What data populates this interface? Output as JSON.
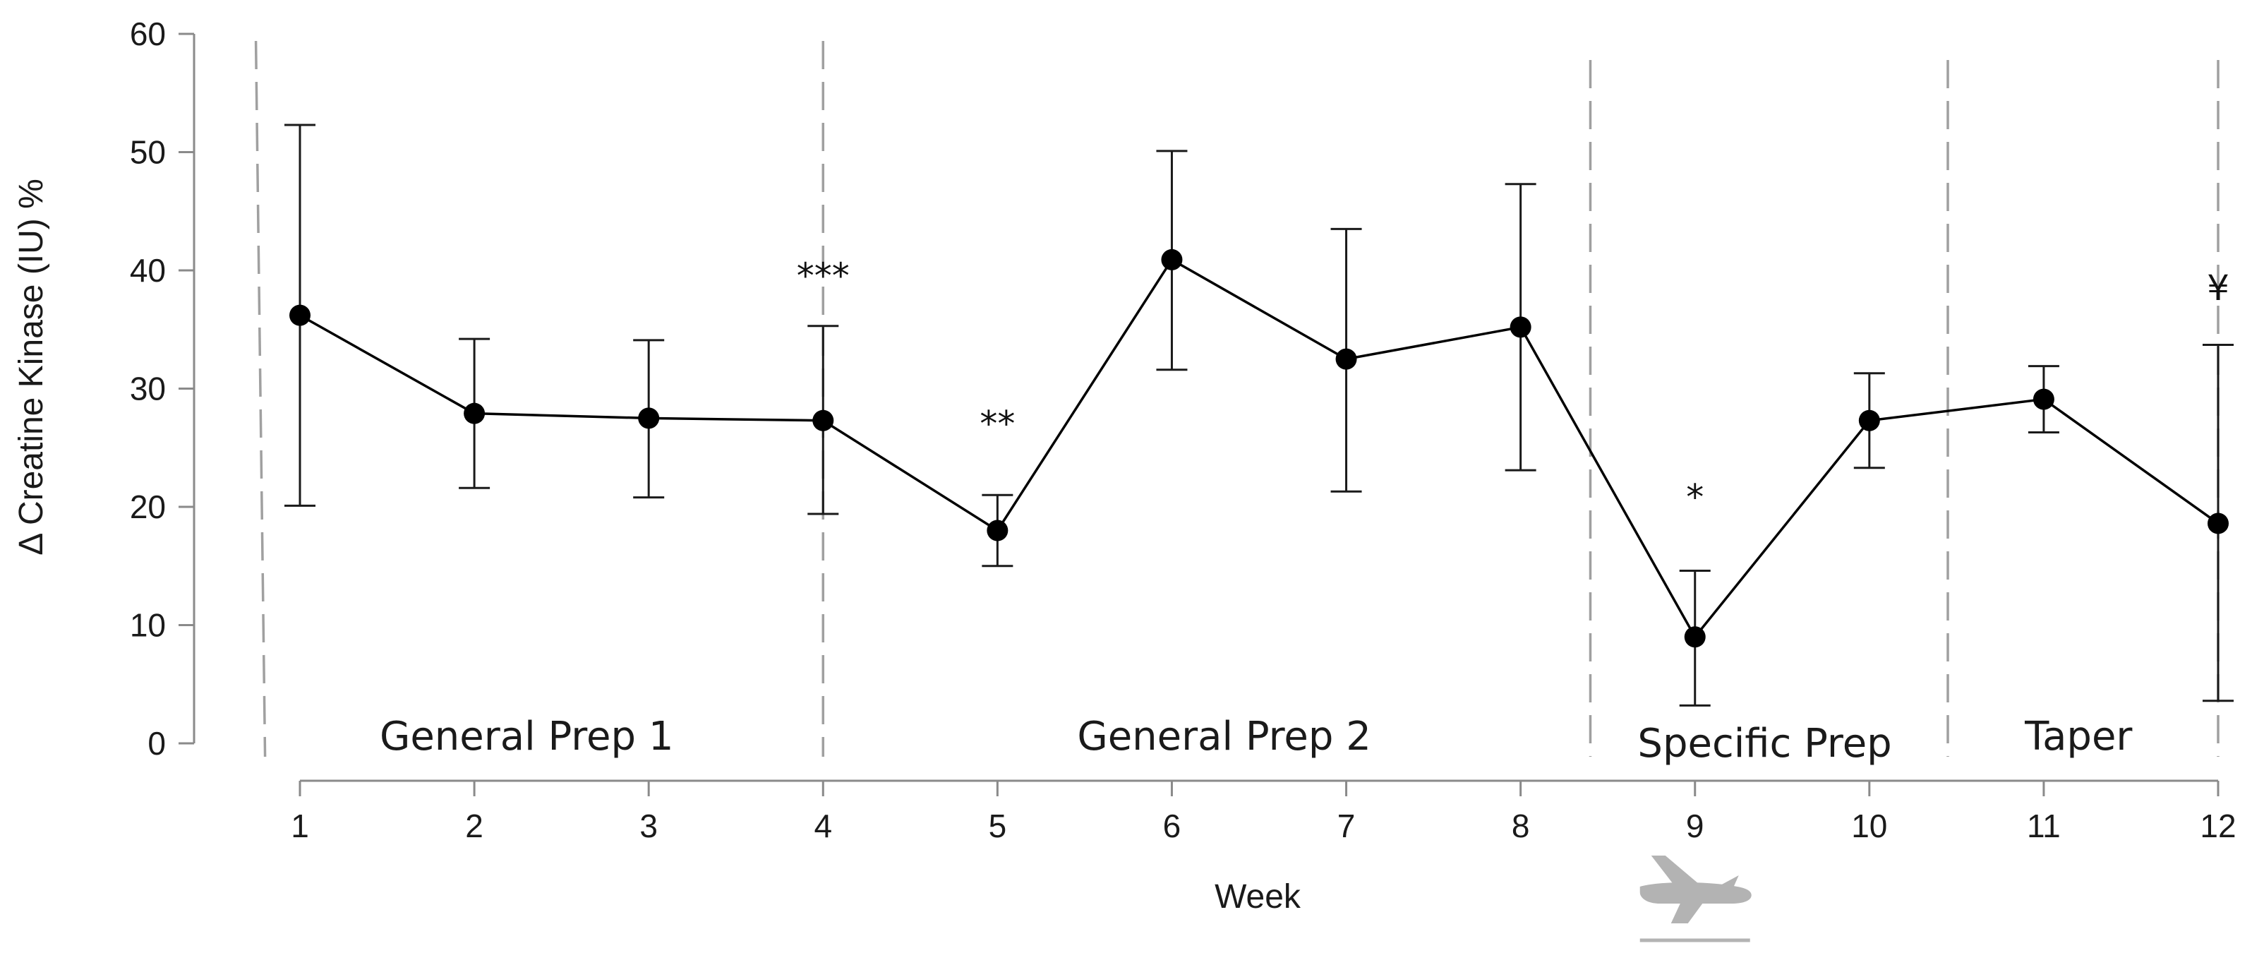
{
  "chart_data": {
    "type": "line",
    "title": "",
    "xlabel": "Week",
    "ylabel": "Δ Creatine Kinase (IU) %",
    "x": [
      1,
      2,
      3,
      4,
      5,
      6,
      7,
      8,
      9,
      10,
      11,
      12
    ],
    "x_tick_labels": [
      "1",
      "2",
      "3",
      "4",
      "5",
      "6",
      "7",
      "8",
      "9",
      "10",
      "11",
      "12"
    ],
    "ylim": [
      0,
      60
    ],
    "y_ticks": [
      0,
      10,
      20,
      30,
      40,
      50,
      60
    ],
    "y_tick_labels": [
      "0",
      "10",
      "20",
      "30",
      "40",
      "50",
      "60"
    ],
    "grid": false,
    "series": [
      {
        "name": "Δ Creatine Kinase",
        "values": [
          36.2,
          27.9,
          27.5,
          27.3,
          18.0,
          40.9,
          32.5,
          35.2,
          9.0,
          27.3,
          29.1,
          18.6
        ],
        "err_low": [
          20.1,
          21.6,
          20.8,
          19.4,
          15.0,
          31.6,
          21.3,
          23.1,
          3.2,
          23.3,
          26.3,
          3.6
        ],
        "err_high": [
          52.3,
          34.2,
          34.1,
          35.3,
          21.0,
          50.1,
          43.5,
          47.3,
          14.6,
          31.3,
          31.9,
          33.7
        ]
      }
    ],
    "phase_boundaries": [
      0.8,
      4.0,
      8.4,
      10.45,
      12.0
    ],
    "phases": [
      {
        "label": "General Prep 1",
        "center": 2.3
      },
      {
        "label": "General Prep 2",
        "center": 6.3
      },
      {
        "label": "Specific Prep",
        "center": 9.4
      },
      {
        "label": "Taper",
        "center": 11.2
      }
    ],
    "annotations": [
      {
        "text": "***",
        "x": 4,
        "y": 38.5
      },
      {
        "text": "**",
        "x": 5,
        "y": 26.0
      },
      {
        "text": "*",
        "x": 9,
        "y": 19.8
      },
      {
        "text": "¥",
        "x": 12,
        "y": 37.5
      }
    ],
    "icons": [
      {
        "name": "airplane-icon",
        "x": 9
      }
    ]
  }
}
